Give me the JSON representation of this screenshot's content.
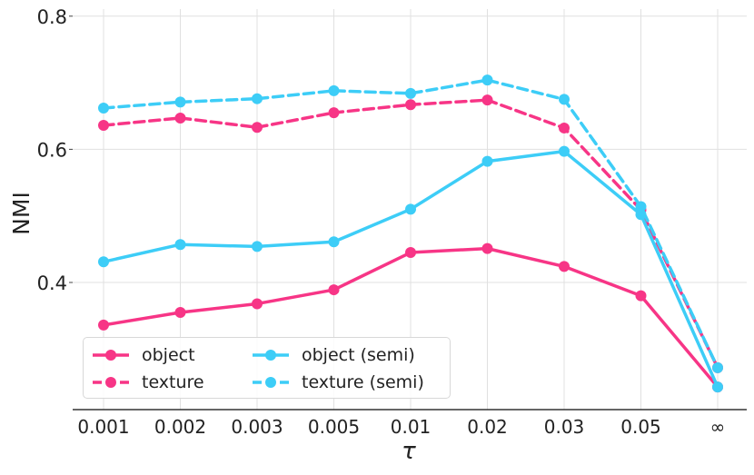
{
  "chart_data": {
    "type": "line",
    "title": "",
    "xlabel": "τ",
    "ylabel": "NMI",
    "categories": [
      "0.001",
      "0.002",
      "0.003",
      "0.005",
      "0.01",
      "0.02",
      "0.03",
      "0.05",
      "∞"
    ],
    "yticks": [
      "0.4",
      "0.6",
      "0.8"
    ],
    "ylim": [
      0.2,
      0.8
    ],
    "grid": true,
    "legend_position": "lower-left",
    "series": [
      {
        "name": "object",
        "color": "#f73586",
        "dash": "solid",
        "values": [
          0.336,
          0.355,
          0.368,
          0.389,
          0.445,
          0.451,
          0.424,
          0.38,
          0.243
        ]
      },
      {
        "name": "texture",
        "color": "#f73586",
        "dash": "dashed",
        "values": [
          0.636,
          0.647,
          0.633,
          0.655,
          0.667,
          0.674,
          0.632,
          0.509,
          0.272
        ]
      },
      {
        "name": "object (semi)",
        "color": "#3dcdf7",
        "dash": "solid",
        "values": [
          0.431,
          0.457,
          0.454,
          0.461,
          0.51,
          0.582,
          0.597,
          0.502,
          0.243
        ]
      },
      {
        "name": "texture (semi)",
        "color": "#3dcdf7",
        "dash": "dashed",
        "values": [
          0.662,
          0.671,
          0.676,
          0.688,
          0.684,
          0.704,
          0.675,
          0.514,
          0.272
        ]
      }
    ]
  }
}
